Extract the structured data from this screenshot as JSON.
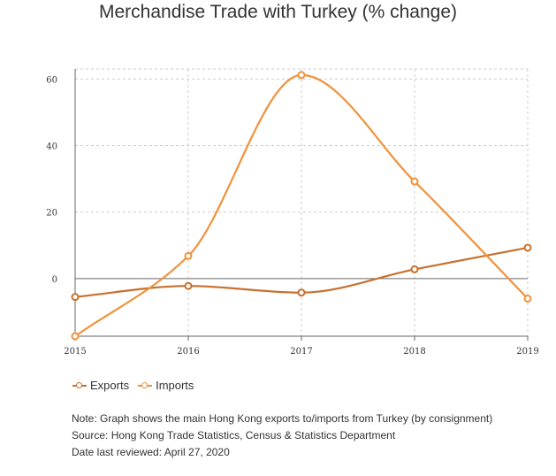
{
  "chart_data": {
    "type": "line",
    "title": "Merchandise Trade with Turkey (% change)",
    "categories": [
      "2015",
      "2016",
      "2017",
      "2018",
      "2019"
    ],
    "series": [
      {
        "name": "Exports",
        "values": [
          -5.5,
          -2.2,
          -4.2,
          2.8,
          9.3
        ],
        "color": "#c8702e"
      },
      {
        "name": "Imports",
        "values": [
          -17.3,
          6.8,
          61.2,
          29.2,
          -6.0
        ],
        "color": "#f0923a"
      }
    ],
    "yticks": [
      0,
      20,
      40,
      60
    ],
    "ylim": [
      -17.3,
      63
    ],
    "grid": true,
    "legend_position": "bottom-left"
  },
  "notes": {
    "note": "Note: Graph shows the main Hong Kong exports to/imports from Turkey (by consignment)",
    "source": "Source: Hong Kong Trade Statistics, Census & Statistics Department",
    "reviewed": "Date last reviewed: April 27, 2020"
  }
}
